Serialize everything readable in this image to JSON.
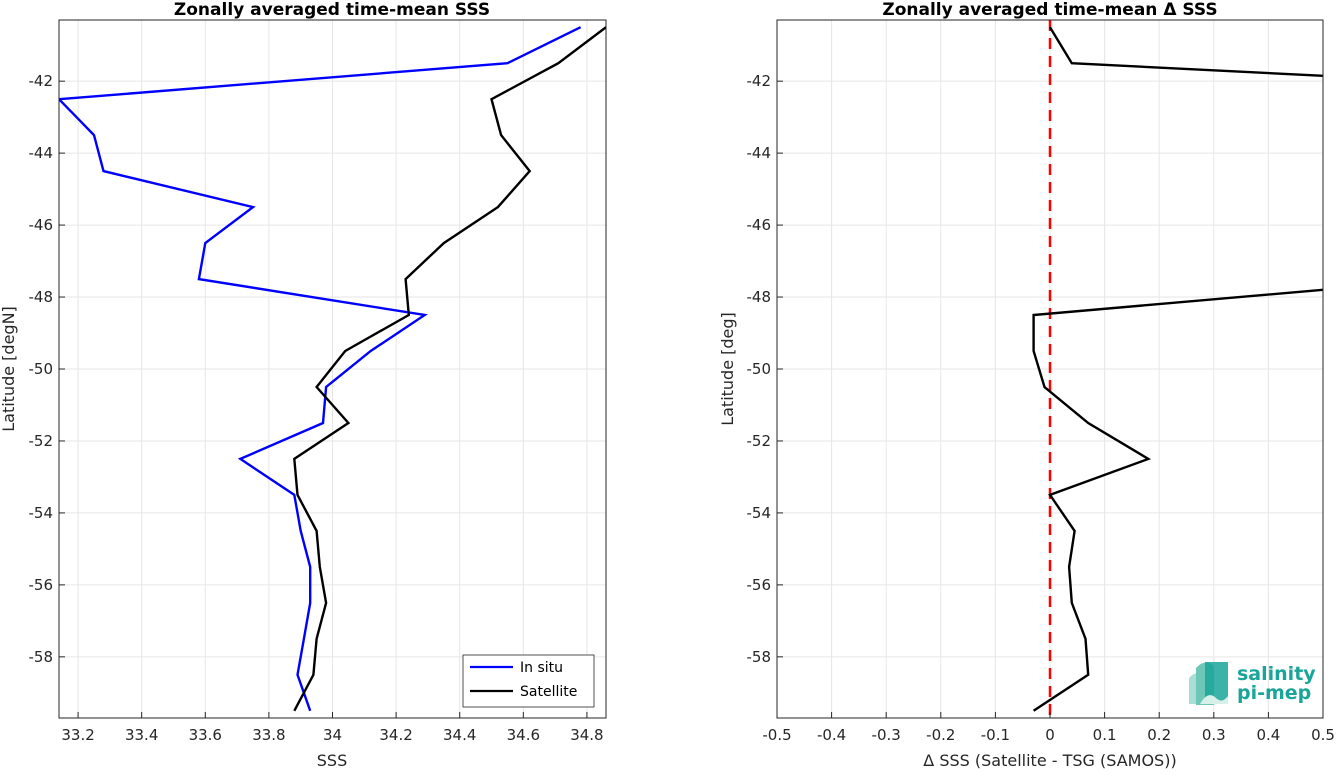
{
  "chart_data": [
    {
      "type": "line",
      "title": "Zonally averaged time-mean SSS",
      "xlabel": "SSS",
      "ylabel": "Latitude [degN]",
      "xlim": [
        33.14,
        34.86
      ],
      "ylim": [
        -59.7,
        -40.3
      ],
      "xticks": [
        33.2,
        33.4,
        33.6,
        33.8,
        34,
        34.2,
        34.4,
        34.6,
        34.8
      ],
      "xtick_labels": [
        "33.2",
        "33.4",
        "33.6",
        "33.8",
        "34",
        "34.2",
        "34.4",
        "34.6",
        "34.8"
      ],
      "yticks": [
        -42,
        -44,
        -46,
        -48,
        -50,
        -52,
        -54,
        -56,
        -58
      ],
      "ytick_labels": [
        "-42",
        "-44",
        "-46",
        "-48",
        "-50",
        "-52",
        "-54",
        "-56",
        "-58"
      ],
      "grid": true,
      "legend_position": "bottom-right",
      "series": [
        {
          "name": "In situ",
          "color": "#0000ff",
          "points": [
            [
              34.78,
              -40.5
            ],
            [
              34.55,
              -41.5
            ],
            [
              33.14,
              -42.5
            ],
            [
              33.25,
              -43.5
            ],
            [
              33.28,
              -44.5
            ],
            [
              33.75,
              -45.5
            ],
            [
              33.6,
              -46.5
            ],
            [
              33.58,
              -47.5
            ],
            [
              34.29,
              -48.5
            ],
            [
              34.12,
              -49.5
            ],
            [
              33.98,
              -50.5
            ],
            [
              33.97,
              -51.5
            ],
            [
              33.71,
              -52.5
            ],
            [
              33.88,
              -53.5
            ],
            [
              33.9,
              -54.5
            ],
            [
              33.93,
              -55.5
            ],
            [
              33.93,
              -56.5
            ],
            [
              33.91,
              -57.5
            ],
            [
              33.89,
              -58.5
            ],
            [
              33.93,
              -59.5
            ]
          ]
        },
        {
          "name": "Satellite",
          "color": "#000000",
          "points": [
            [
              34.86,
              -40.5
            ],
            [
              34.71,
              -41.5
            ],
            [
              34.5,
              -42.5
            ],
            [
              34.53,
              -43.5
            ],
            [
              34.62,
              -44.5
            ],
            [
              34.52,
              -45.5
            ],
            [
              34.35,
              -46.5
            ],
            [
              34.23,
              -47.5
            ],
            [
              34.24,
              -48.5
            ],
            [
              34.04,
              -49.5
            ],
            [
              33.95,
              -50.5
            ],
            [
              34.05,
              -51.5
            ],
            [
              33.88,
              -52.5
            ],
            [
              33.89,
              -53.5
            ],
            [
              33.95,
              -54.5
            ],
            [
              33.96,
              -55.5
            ],
            [
              33.98,
              -56.5
            ],
            [
              33.95,
              -57.5
            ],
            [
              33.94,
              -58.5
            ],
            [
              33.88,
              -59.5
            ]
          ]
        }
      ]
    },
    {
      "type": "line",
      "title": "Zonally averaged time-mean Δ SSS",
      "xlabel": "Δ SSS (Satellite - TSG (SAMOS))",
      "ylabel": "Latitude [deg]",
      "xlim": [
        -0.5,
        0.5
      ],
      "ylim": [
        -59.7,
        -40.3
      ],
      "xticks": [
        -0.5,
        -0.4,
        -0.3,
        -0.2,
        -0.1,
        0,
        0.1,
        0.2,
        0.3,
        0.4,
        0.5
      ],
      "xtick_labels": [
        "-0.5",
        "-0.4",
        "-0.3",
        "-0.2",
        "-0.1",
        "0",
        "0.1",
        "0.2",
        "0.3",
        "0.4",
        "0.5"
      ],
      "yticks": [
        -42,
        -44,
        -46,
        -48,
        -50,
        -52,
        -54,
        -56,
        -58
      ],
      "ytick_labels": [
        "-42",
        "-44",
        "-46",
        "-48",
        "-50",
        "-52",
        "-54",
        "-56",
        "-58"
      ],
      "grid": true,
      "reference_line": {
        "x": 0,
        "color": "#ff0000",
        "style": "dashed"
      },
      "series": [
        {
          "color": "#000000",
          "points": [
            [
              0.0,
              -40.5
            ],
            [
              0.04,
              -41.5
            ],
            [
              0.5,
              -41.85
            ],
            [
              null,
              null
            ],
            [
              0.5,
              -47.8
            ],
            [
              -0.03,
              -48.5
            ],
            [
              -0.03,
              -49.5
            ],
            [
              -0.01,
              -50.5
            ],
            [
              0.07,
              -51.5
            ],
            [
              0.18,
              -52.5
            ],
            [
              0.0,
              -53.5
            ],
            [
              0.045,
              -54.5
            ],
            [
              0.035,
              -55.5
            ],
            [
              0.04,
              -56.5
            ],
            [
              0.065,
              -57.5
            ],
            [
              0.07,
              -58.5
            ],
            [
              -0.03,
              -59.5
            ]
          ]
        }
      ]
    }
  ],
  "logo": {
    "line1": "salinity",
    "line2": "pi-mep"
  }
}
